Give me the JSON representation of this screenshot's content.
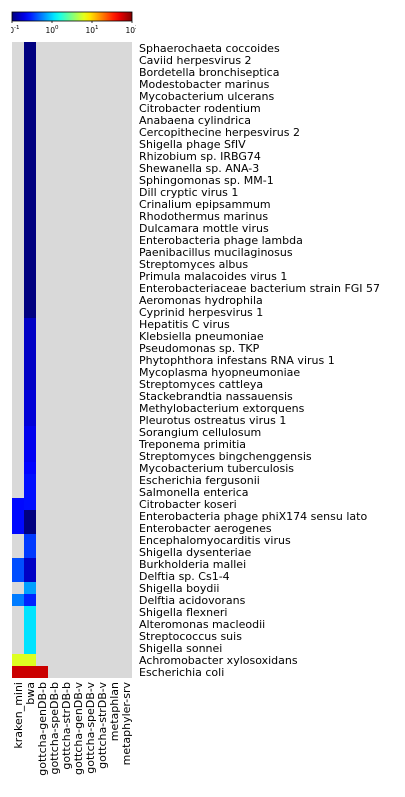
{
  "chart_data": {
    "type": "heatmap",
    "color_scale": "log",
    "colormap": "jet",
    "missing_color": "#d9d9d9",
    "colorbar": {
      "range": [
        0.1,
        100
      ],
      "ticks": [
        {
          "base": "10",
          "exp": "-1"
        },
        {
          "base": "10",
          "exp": "0"
        },
        {
          "base": "10",
          "exp": "1"
        },
        {
          "base": "10",
          "exp": "2"
        }
      ]
    },
    "columns": [
      "kraken_mini",
      "bwa",
      "gottcha-genDB-b",
      "gottcha-speDB-b",
      "gottcha-strDB-b",
      "gottcha-genDB-v",
      "gottcha-speDB-v",
      "gottcha-strDB-v",
      "metaphlan",
      "metaphyler-srv"
    ],
    "rows": [
      "Sphaerochaeta coccoides",
      "Caviid herpesvirus 2",
      "Bordetella bronchiseptica",
      "Modestobacter marinus",
      "Mycobacterium ulcerans",
      "Citrobacter rodentium",
      "Anabaena cylindrica",
      "Cercopithecine herpesvirus 2",
      "Shigella phage SfIV",
      "Rhizobium sp. IRBG74",
      "Shewanella sp. ANA-3",
      "Sphingomonas sp. MM-1",
      "Dill cryptic virus 1",
      "Crinalium epipsammum",
      "Rhodothermus marinus",
      "Dulcamara mottle virus",
      "Enterobacteria phage lambda",
      "Paenibacillus mucilaginosus",
      "Streptomyces albus",
      "Primula malacoides virus 1",
      "Enterobacteriaceae bacterium strain FGI 57",
      "Aeromonas hydrophila",
      "Cyprinid herpesvirus 1",
      "Hepatitis C virus",
      "Klebsiella pneumoniae",
      "Pseudomonas sp. TKP",
      "Phytophthora infestans RNA virus 1",
      "Mycoplasma hyopneumoniae",
      "Streptomyces cattleya",
      "Stackebrandtia nassauensis",
      "Methylobacterium extorquens",
      "Pleurotus ostreatus virus 1",
      "Sorangium cellulosum",
      "Treponema primitia",
      "Streptomyces bingchenggensis",
      "Mycobacterium tuberculosis",
      "Escherichia fergusonii",
      "Salmonella enterica",
      "Citrobacter koseri",
      "Enterobacteria phage phiX174 sensu lato",
      "Enterobacter aerogenes",
      "Encephalomyocarditis virus",
      "Shigella dysenteriae",
      "Burkholderia mallei",
      "Delftia sp. Cs1-4",
      "Shigella boydii",
      "Delftia acidovorans",
      "Shigella flexneri",
      "Alteromonas macleodii",
      "Streptococcus suis",
      "Shigella sonnei",
      "Achromobacter xylosoxidans",
      "Escherichia coli"
    ],
    "values": [
      [
        null,
        0.08,
        null,
        null,
        null,
        null,
        null,
        null,
        null,
        null
      ],
      [
        null,
        0.08,
        null,
        null,
        null,
        null,
        null,
        null,
        null,
        null
      ],
      [
        null,
        0.08,
        null,
        null,
        null,
        null,
        null,
        null,
        null,
        null
      ],
      [
        null,
        0.08,
        null,
        null,
        null,
        null,
        null,
        null,
        null,
        null
      ],
      [
        null,
        0.08,
        null,
        null,
        null,
        null,
        null,
        null,
        null,
        null
      ],
      [
        null,
        0.08,
        null,
        null,
        null,
        null,
        null,
        null,
        null,
        null
      ],
      [
        null,
        0.08,
        null,
        null,
        null,
        null,
        null,
        null,
        null,
        null
      ],
      [
        null,
        0.08,
        null,
        null,
        null,
        null,
        null,
        null,
        null,
        null
      ],
      [
        null,
        0.08,
        null,
        null,
        null,
        null,
        null,
        null,
        null,
        null
      ],
      [
        null,
        0.08,
        null,
        null,
        null,
        null,
        null,
        null,
        null,
        null
      ],
      [
        null,
        0.08,
        null,
        null,
        null,
        null,
        null,
        null,
        null,
        null
      ],
      [
        null,
        0.08,
        null,
        null,
        null,
        null,
        null,
        null,
        null,
        null
      ],
      [
        null,
        0.08,
        null,
        null,
        null,
        null,
        null,
        null,
        null,
        null
      ],
      [
        null,
        0.08,
        null,
        null,
        null,
        null,
        null,
        null,
        null,
        null
      ],
      [
        null,
        0.08,
        null,
        null,
        null,
        null,
        null,
        null,
        null,
        null
      ],
      [
        null,
        0.08,
        null,
        null,
        null,
        null,
        null,
        null,
        null,
        null
      ],
      [
        null,
        0.08,
        null,
        null,
        null,
        null,
        null,
        null,
        null,
        null
      ],
      [
        null,
        0.08,
        null,
        null,
        null,
        null,
        null,
        null,
        null,
        null
      ],
      [
        null,
        0.08,
        null,
        null,
        null,
        null,
        null,
        null,
        null,
        null
      ],
      [
        null,
        0.08,
        null,
        null,
        null,
        null,
        null,
        null,
        null,
        null
      ],
      [
        null,
        0.08,
        null,
        null,
        null,
        null,
        null,
        null,
        null,
        null
      ],
      [
        null,
        0.08,
        null,
        null,
        null,
        null,
        null,
        null,
        null,
        null
      ],
      [
        null,
        0.08,
        null,
        null,
        null,
        null,
        null,
        null,
        null,
        null
      ],
      [
        null,
        0.16,
        null,
        null,
        null,
        null,
        null,
        null,
        null,
        null
      ],
      [
        null,
        0.16,
        null,
        null,
        null,
        null,
        null,
        null,
        null,
        null
      ],
      [
        null,
        0.16,
        null,
        null,
        null,
        null,
        null,
        null,
        null,
        null
      ],
      [
        null,
        0.16,
        null,
        null,
        null,
        null,
        null,
        null,
        null,
        null
      ],
      [
        null,
        0.16,
        null,
        null,
        null,
        null,
        null,
        null,
        null,
        null
      ],
      [
        null,
        0.16,
        null,
        null,
        null,
        null,
        null,
        null,
        null,
        null
      ],
      [
        null,
        0.18,
        null,
        null,
        null,
        null,
        null,
        null,
        null,
        null
      ],
      [
        null,
        0.18,
        null,
        null,
        null,
        null,
        null,
        null,
        null,
        null
      ],
      [
        null,
        0.18,
        null,
        null,
        null,
        null,
        null,
        null,
        null,
        null
      ],
      [
        null,
        0.21,
        null,
        null,
        null,
        null,
        null,
        null,
        null,
        null
      ],
      [
        null,
        0.21,
        null,
        null,
        null,
        null,
        null,
        null,
        null,
        null
      ],
      [
        null,
        0.22,
        null,
        null,
        null,
        null,
        null,
        null,
        null,
        null
      ],
      [
        null,
        0.24,
        null,
        null,
        null,
        null,
        null,
        null,
        null,
        null
      ],
      [
        null,
        0.26,
        null,
        null,
        null,
        null,
        null,
        null,
        null,
        null
      ],
      [
        null,
        0.26,
        null,
        null,
        null,
        null,
        null,
        null,
        null,
        null
      ],
      [
        0.25,
        0.26,
        null,
        null,
        null,
        null,
        null,
        null,
        null,
        null
      ],
      [
        0.25,
        0.08,
        null,
        null,
        null,
        null,
        null,
        null,
        null,
        null
      ],
      [
        0.25,
        0.08,
        null,
        null,
        null,
        null,
        null,
        null,
        null,
        null
      ],
      [
        null,
        0.35,
        null,
        null,
        null,
        null,
        null,
        null,
        null,
        null
      ],
      [
        null,
        0.35,
        null,
        null,
        null,
        null,
        null,
        null,
        null,
        null
      ],
      [
        0.4,
        0.16,
        null,
        null,
        null,
        null,
        null,
        null,
        null,
        null
      ],
      [
        0.4,
        0.16,
        null,
        null,
        null,
        null,
        null,
        null,
        null,
        null
      ],
      [
        null,
        0.7,
        null,
        null,
        null,
        null,
        null,
        null,
        null,
        null
      ],
      [
        0.55,
        0.3,
        null,
        null,
        null,
        null,
        null,
        null,
        null,
        null
      ],
      [
        null,
        1.1,
        null,
        null,
        null,
        null,
        null,
        null,
        null,
        null
      ],
      [
        null,
        1.1,
        null,
        null,
        null,
        null,
        null,
        null,
        null,
        null
      ],
      [
        null,
        1.1,
        null,
        null,
        null,
        null,
        null,
        null,
        null,
        null
      ],
      [
        null,
        1.1,
        null,
        null,
        null,
        null,
        null,
        null,
        null,
        null
      ],
      [
        6,
        6,
        null,
        null,
        null,
        null,
        null,
        null,
        null,
        null
      ],
      [
        60,
        60,
        60,
        null,
        null,
        null,
        null,
        null,
        null,
        null
      ]
    ]
  }
}
